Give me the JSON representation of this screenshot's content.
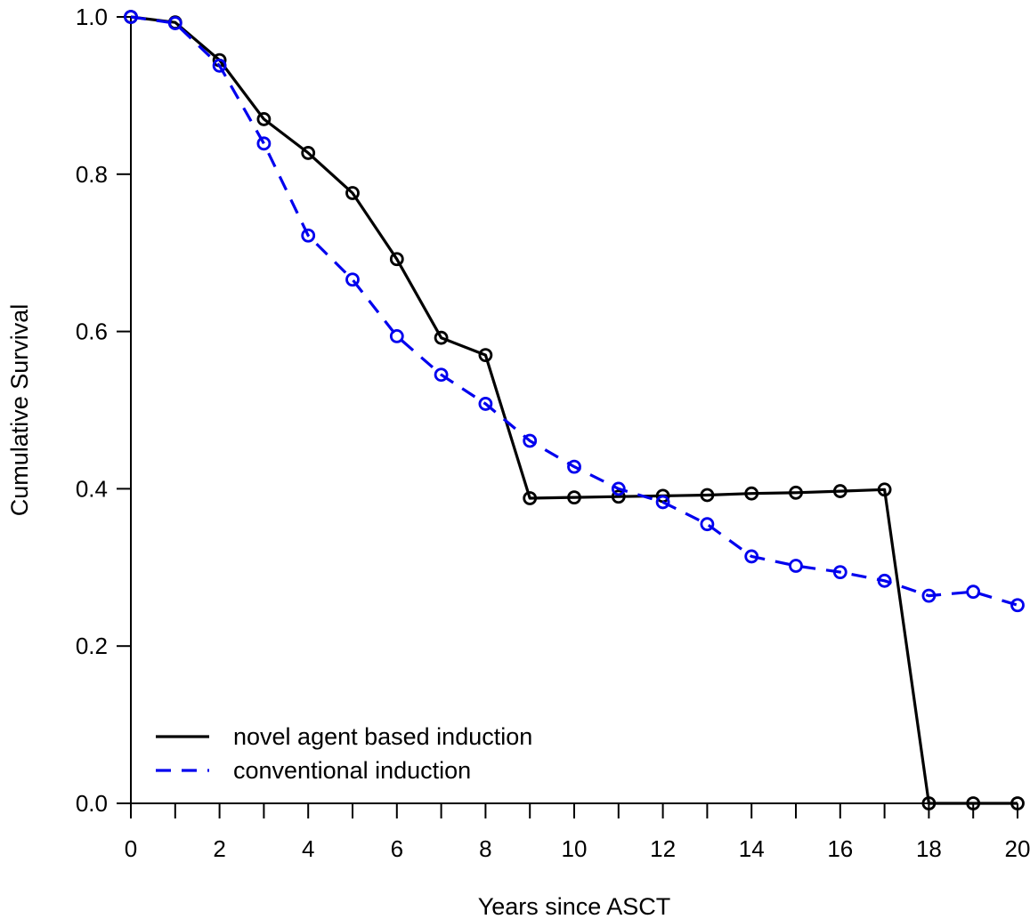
{
  "chart_data": {
    "type": "line",
    "title": "",
    "xlabel": "Years since ASCT",
    "ylabel": "Cumulative  Survival",
    "xlim": [
      0,
      20
    ],
    "ylim": [
      0,
      1
    ],
    "x_ticks": [
      0,
      1,
      2,
      3,
      4,
      5,
      6,
      7,
      8,
      9,
      10,
      11,
      12,
      13,
      14,
      15,
      16,
      17,
      18,
      19,
      20
    ],
    "x_tick_labels": [
      "0",
      "2",
      "4",
      "6",
      "8",
      "10",
      "12",
      "14",
      "16",
      "18",
      "20"
    ],
    "y_tick_labels": [
      "0.0",
      "0.2",
      "0.4",
      "0.6",
      "0.8",
      "1.0"
    ],
    "grid": false,
    "legend_position": "bottom-left",
    "series": [
      {
        "name": "novel agent based induction",
        "color": "#000000",
        "line_style": "solid",
        "marker": "open-circle",
        "x": [
          0,
          1,
          2,
          3,
          4,
          5,
          6,
          7,
          8,
          9,
          10,
          11,
          12,
          13,
          14,
          15,
          16,
          17,
          18,
          19,
          20
        ],
        "y": [
          1.0,
          0.993,
          0.945,
          0.87,
          0.827,
          0.776,
          0.692,
          0.592,
          0.57,
          0.388,
          0.389,
          0.39,
          0.391,
          0.392,
          0.394,
          0.395,
          0.397,
          0.399,
          0.0,
          0.0,
          0.0
        ]
      },
      {
        "name": "conventional induction",
        "color": "#0000ee",
        "line_style": "dashed",
        "marker": "open-circle",
        "x": [
          0,
          1,
          2,
          3,
          4,
          5,
          6,
          7,
          8,
          9,
          10,
          11,
          12,
          13,
          14,
          15,
          16,
          17,
          18,
          19,
          20
        ],
        "y": [
          1.0,
          0.992,
          0.938,
          0.839,
          0.722,
          0.666,
          0.594,
          0.545,
          0.508,
          0.461,
          0.428,
          0.4,
          0.383,
          0.355,
          0.314,
          0.302,
          0.294,
          0.283,
          0.264,
          0.269,
          0.252
        ]
      }
    ]
  }
}
